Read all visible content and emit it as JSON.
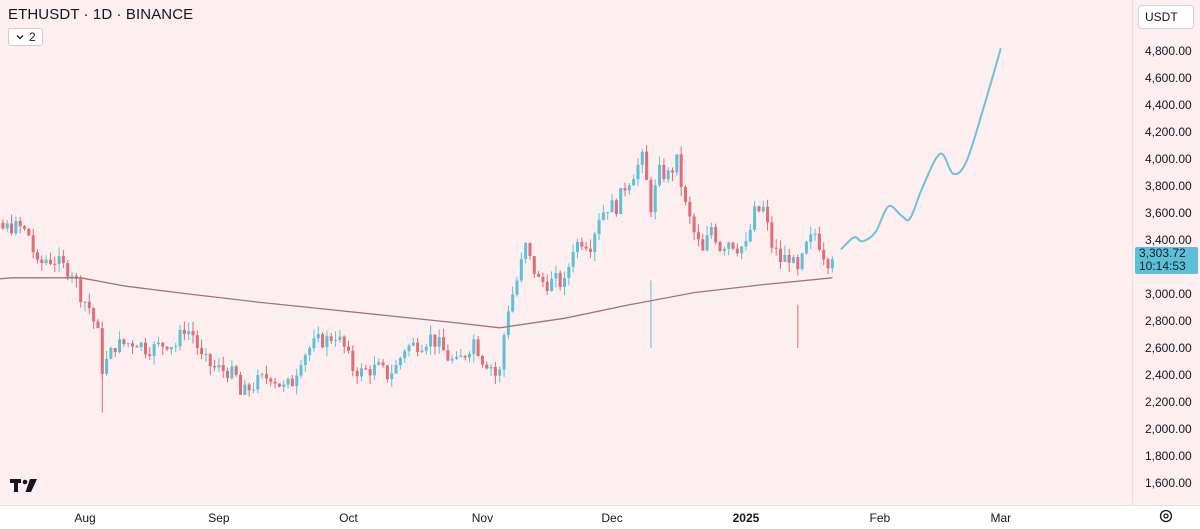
{
  "header": {
    "symbol": "ETHUSDT · 1D · BINANCE",
    "indicator_count": "2"
  },
  "currency_button": "USDT",
  "last_price_tag": {
    "price": "3,303.72",
    "countdown": "10:14:53",
    "color": "#5ec0d6"
  },
  "icons": {
    "logo": "tradingview-logo-icon",
    "settings": "gear-icon",
    "chevron": "chevron-down-icon"
  },
  "colors": {
    "background": "#fdeef0",
    "up_candle": "#5ec0d6",
    "down_candle": "#e06c75",
    "moving_average": "#a07476",
    "projection": "#6cc3d8"
  },
  "chart_data": {
    "type": "candlestick",
    "title": "ETHUSDT · 1D · BINANCE",
    "y_ticks": [
      "4,800.00",
      "4,600.00",
      "4,400.00",
      "4,200.00",
      "4,000.00",
      "3,800.00",
      "3,600.00",
      "3,400.00",
      "3,000.00",
      "2,800.00",
      "2,600.00",
      "2,400.00",
      "2,200.00",
      "2,000.00",
      "1,800.00",
      "1,600.00"
    ],
    "y_tick_values": [
      4800,
      4600,
      4400,
      4200,
      4000,
      3800,
      3600,
      3400,
      3000,
      2800,
      2600,
      2400,
      2200,
      2000,
      1800,
      1600
    ],
    "x_ticks": [
      {
        "label": "Aug",
        "date": "2024-08-01",
        "bold": false
      },
      {
        "label": "Sep",
        "date": "2024-09-01",
        "bold": false
      },
      {
        "label": "Oct",
        "date": "2024-10-01",
        "bold": false
      },
      {
        "label": "Nov",
        "date": "2024-11-01",
        "bold": false
      },
      {
        "label": "Dec",
        "date": "2024-12-01",
        "bold": false
      },
      {
        "label": "2025",
        "date": "2025-01-01",
        "bold": true
      },
      {
        "label": "Feb",
        "date": "2025-02-01",
        "bold": false
      },
      {
        "label": "Mar",
        "date": "2025-03-01",
        "bold": false
      }
    ],
    "ylim": [
      1580,
      4900
    ],
    "close_series": {
      "start_date": "2024-07-01",
      "points": [
        [
          "2024-07-01",
          3090
        ],
        [
          "2024-07-04",
          3250
        ],
        [
          "2024-07-06",
          3290
        ],
        [
          "2024-07-08",
          3430
        ],
        [
          "2024-07-10",
          3450
        ],
        [
          "2024-07-13",
          3480
        ],
        [
          "2024-07-15",
          3500
        ],
        [
          "2024-07-17",
          3490
        ],
        [
          "2024-07-19",
          3440
        ],
        [
          "2024-07-21",
          3200
        ],
        [
          "2024-07-23",
          3260
        ],
        [
          "2024-07-25",
          3250
        ],
        [
          "2024-07-27",
          3200
        ],
        [
          "2024-07-29",
          3170
        ],
        [
          "2024-07-31",
          3000
        ],
        [
          "2024-08-02",
          2900
        ],
        [
          "2024-08-04",
          2700
        ],
        [
          "2024-08-05",
          2450
        ],
        [
          "2024-08-06",
          2500
        ],
        [
          "2024-08-08",
          2620
        ],
        [
          "2024-08-10",
          2630
        ],
        [
          "2024-08-13",
          2650
        ],
        [
          "2024-08-15",
          2600
        ],
        [
          "2024-08-17",
          2600
        ],
        [
          "2024-08-20",
          2640
        ],
        [
          "2024-08-22",
          2620
        ],
        [
          "2024-08-24",
          2750
        ],
        [
          "2024-08-26",
          2700
        ],
        [
          "2024-08-28",
          2520
        ],
        [
          "2024-08-31",
          2450
        ],
        [
          "2024-09-03",
          2430
        ],
        [
          "2024-09-05",
          2380
        ],
        [
          "2024-09-06",
          2250
        ],
        [
          "2024-09-08",
          2300
        ],
        [
          "2024-09-10",
          2350
        ],
        [
          "2024-09-13",
          2400
        ],
        [
          "2024-09-16",
          2300
        ],
        [
          "2024-09-18",
          2350
        ],
        [
          "2024-09-20",
          2530
        ],
        [
          "2024-09-22",
          2600
        ],
        [
          "2024-09-24",
          2650
        ],
        [
          "2024-09-26",
          2660
        ],
        [
          "2024-09-28",
          2700
        ],
        [
          "2024-09-30",
          2600
        ],
        [
          "2024-10-02",
          2450
        ],
        [
          "2024-10-04",
          2420
        ],
        [
          "2024-10-06",
          2440
        ],
        [
          "2024-10-08",
          2450
        ],
        [
          "2024-10-10",
          2400
        ],
        [
          "2024-10-12",
          2460
        ],
        [
          "2024-10-14",
          2600
        ],
        [
          "2024-10-16",
          2620
        ],
        [
          "2024-10-18",
          2640
        ],
        [
          "2024-10-20",
          2680
        ],
        [
          "2024-10-22",
          2620
        ],
        [
          "2024-10-24",
          2530
        ],
        [
          "2024-10-26",
          2480
        ],
        [
          "2024-10-28",
          2560
        ],
        [
          "2024-10-30",
          2660
        ],
        [
          "2024-11-01",
          2520
        ],
        [
          "2024-11-03",
          2470
        ],
        [
          "2024-11-04",
          2400
        ],
        [
          "2024-11-05",
          2420
        ],
        [
          "2024-11-06",
          2700
        ],
        [
          "2024-11-07",
          2900
        ],
        [
          "2024-11-09",
          3100
        ],
        [
          "2024-11-11",
          3350
        ],
        [
          "2024-11-12",
          3250
        ],
        [
          "2024-11-14",
          3100
        ],
        [
          "2024-11-16",
          3080
        ],
        [
          "2024-11-18",
          3100
        ],
        [
          "2024-11-20",
          3070
        ],
        [
          "2024-11-22",
          3350
        ],
        [
          "2024-11-24",
          3400
        ],
        [
          "2024-11-26",
          3370
        ],
        [
          "2024-11-28",
          3580
        ],
        [
          "2024-11-30",
          3650
        ],
        [
          "2024-12-02",
          3650
        ],
        [
          "2024-12-04",
          3800
        ],
        [
          "2024-12-06",
          3900
        ],
        [
          "2024-12-08",
          4000
        ],
        [
          "2024-12-10",
          3650
        ],
        [
          "2024-12-12",
          3900
        ],
        [
          "2024-12-14",
          3880
        ],
        [
          "2024-12-16",
          3980
        ],
        [
          "2024-12-18",
          3650
        ],
        [
          "2024-12-20",
          3450
        ],
        [
          "2024-12-22",
          3300
        ],
        [
          "2024-12-24",
          3500
        ],
        [
          "2024-12-26",
          3350
        ],
        [
          "2024-12-28",
          3400
        ],
        [
          "2024-12-30",
          3350
        ],
        [
          "2025-01-01",
          3350
        ],
        [
          "2025-01-03",
          3600
        ],
        [
          "2025-01-05",
          3630
        ],
        [
          "2025-01-07",
          3360
        ],
        [
          "2025-01-09",
          3250
        ],
        [
          "2025-01-11",
          3280
        ],
        [
          "2025-01-13",
          3150
        ],
        [
          "2025-01-15",
          3350
        ],
        [
          "2025-01-17",
          3450
        ],
        [
          "2025-01-19",
          3300
        ],
        [
          "2025-01-20",
          3250
        ],
        [
          "2025-01-21",
          3303.72
        ]
      ]
    },
    "moving_average": {
      "points": [
        [
          "2024-07-01",
          3080
        ],
        [
          "2024-07-15",
          3120
        ],
        [
          "2024-07-31",
          3120
        ],
        [
          "2024-08-10",
          3060
        ],
        [
          "2024-08-25",
          3000
        ],
        [
          "2024-09-10",
          2940
        ],
        [
          "2024-09-25",
          2890
        ],
        [
          "2024-10-10",
          2840
        ],
        [
          "2024-10-25",
          2790
        ],
        [
          "2024-11-05",
          2750
        ],
        [
          "2024-11-20",
          2820
        ],
        [
          "2024-12-05",
          2920
        ],
        [
          "2024-12-20",
          3010
        ],
        [
          "2025-01-05",
          3070
        ],
        [
          "2025-01-21",
          3120
        ]
      ]
    },
    "projection": {
      "points": [
        [
          "2025-01-23",
          3330
        ],
        [
          "2025-01-26",
          3420
        ],
        [
          "2025-01-28",
          3390
        ],
        [
          "2025-01-31",
          3460
        ],
        [
          "2025-02-03",
          3650
        ],
        [
          "2025-02-06",
          3580
        ],
        [
          "2025-02-08",
          3560
        ],
        [
          "2025-02-11",
          3800
        ],
        [
          "2025-02-15",
          4040
        ],
        [
          "2025-02-18",
          3890
        ],
        [
          "2025-02-21",
          3980
        ],
        [
          "2025-02-25",
          4380
        ],
        [
          "2025-03-01",
          4820
        ]
      ]
    }
  }
}
